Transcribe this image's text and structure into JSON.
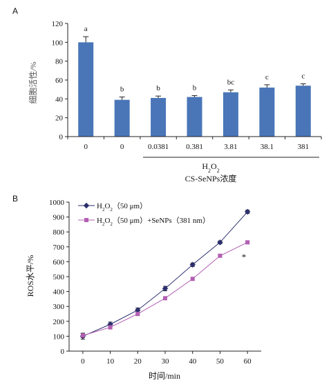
{
  "chart_data": [
    {
      "panel_label": "A",
      "type": "bar",
      "ylabel": "细胞活性/%",
      "ylim": [
        0,
        120
      ],
      "yticks": [
        "0",
        "20",
        "40",
        "60",
        "80",
        "100",
        "120"
      ],
      "categories": [
        "0",
        "0",
        "0.0381",
        "0.381",
        "3.81",
        "38.1",
        "381"
      ],
      "values": [
        100,
        39,
        41,
        42,
        47,
        52,
        54
      ],
      "errors": [
        6,
        3,
        2,
        1.5,
        2.5,
        3,
        2
      ],
      "sig_letters": [
        "a",
        "b",
        "b",
        "b",
        "bc",
        "c",
        "c"
      ],
      "bracket_label_1": "H",
      "bracket_label_1_sub": "2",
      "bracket_label_1_tail": "O",
      "bracket_label_1_sub2": "2",
      "bracket_label_2": "CS-SeNPs浓度",
      "bar_color": "#4a76b8",
      "grid": false
    },
    {
      "panel_label": "B",
      "type": "line",
      "ylabel": "ROS水平/%",
      "xlabel": "时间/min",
      "ylim": [
        0,
        1000
      ],
      "xlim": [
        -5,
        65
      ],
      "yticks": [
        "0",
        "100",
        "200",
        "300",
        "400",
        "500",
        "600",
        "700",
        "800",
        "900",
        "1000"
      ],
      "xticks": [
        "0",
        "10",
        "20",
        "30",
        "40",
        "50",
        "60"
      ],
      "x": [
        0,
        10,
        20,
        30,
        40,
        50,
        60
      ],
      "series": [
        {
          "name": "H2O2（50 μm）",
          "values": [
            100,
            180,
            275,
            420,
            580,
            730,
            935
          ],
          "errors": [
            20,
            15,
            15,
            15,
            12,
            10,
            12
          ],
          "color": "#2b2f6e",
          "marker": "diamond"
        },
        {
          "name": "H2O2（50 μm）+SeNPs（381 nm）",
          "values": [
            105,
            160,
            250,
            355,
            485,
            640,
            730
          ],
          "errors": [
            15,
            12,
            12,
            10,
            10,
            10,
            8
          ],
          "color": "#b25fb2",
          "marker": "square"
        }
      ],
      "legend_1": {
        "pre": "H",
        "s1": "2",
        "mid": "O",
        "s2": "2",
        "post": "（50 μm）"
      },
      "legend_2": {
        "pre": "H",
        "s1": "2",
        "mid": "O",
        "s2": "2",
        "post": "（50 μm）+SeNPs（381 nm）"
      },
      "annotation": "*",
      "legend_position": "top-left",
      "grid": false
    }
  ]
}
